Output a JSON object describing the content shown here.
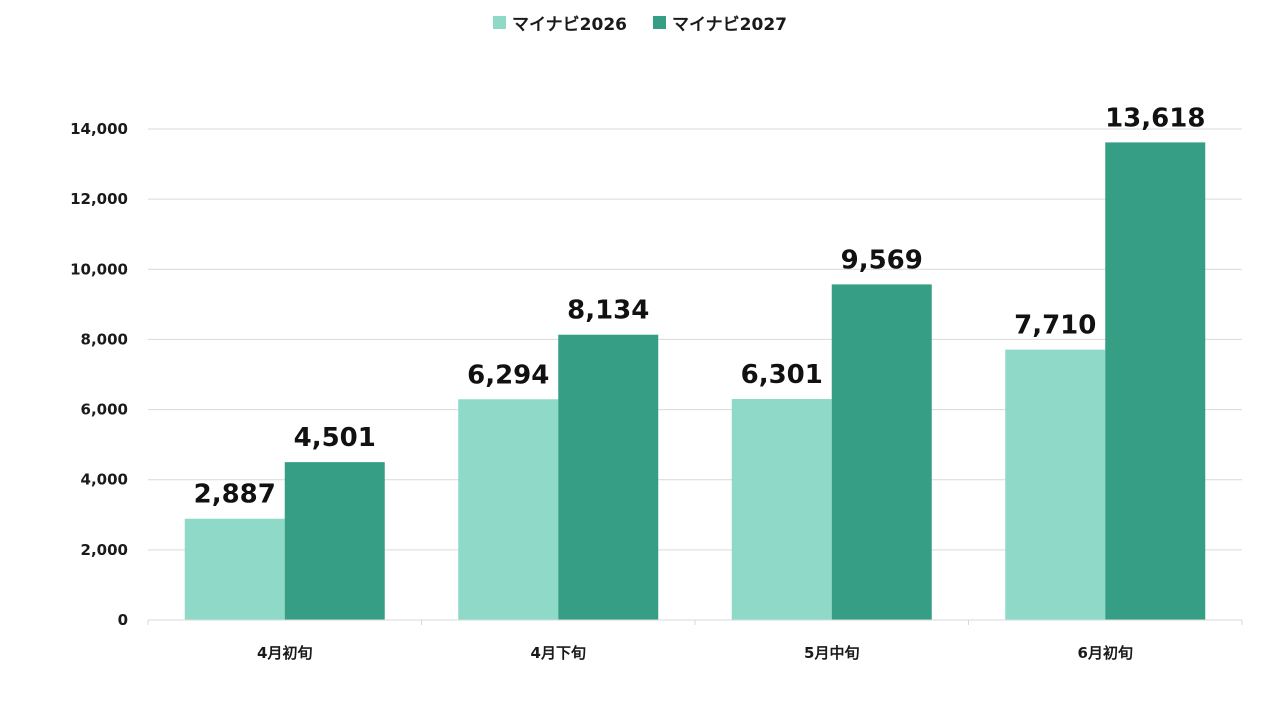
{
  "chart_data": {
    "type": "bar",
    "categories": [
      "4月初旬",
      "4月下旬",
      "5月中旬",
      "6月初旬"
    ],
    "series": [
      {
        "name": "マイナビ2026",
        "values": [
          2887,
          6294,
          6301,
          7710
        ],
        "color": "#8ed9c8"
      },
      {
        "name": "マイナビ2027",
        "values": [
          4501,
          8134,
          9569,
          13618
        ],
        "color": "#359e85"
      }
    ],
    "value_labels": [
      [
        "2,887",
        "6,294",
        "6,301",
        "7,710"
      ],
      [
        "4,501",
        "8,134",
        "9,569",
        "13,618"
      ]
    ],
    "yticks": [
      0,
      2000,
      4000,
      6000,
      8000,
      10000,
      12000,
      14000
    ],
    "ytick_labels": [
      "0",
      "2,000",
      "4,000",
      "6,000",
      "8,000",
      "10,000",
      "12,000",
      "14,000"
    ],
    "ylim": [
      0,
      14000
    ],
    "grid": true,
    "legend_position": "top-center",
    "gridline_color": "#d9d9d9"
  }
}
